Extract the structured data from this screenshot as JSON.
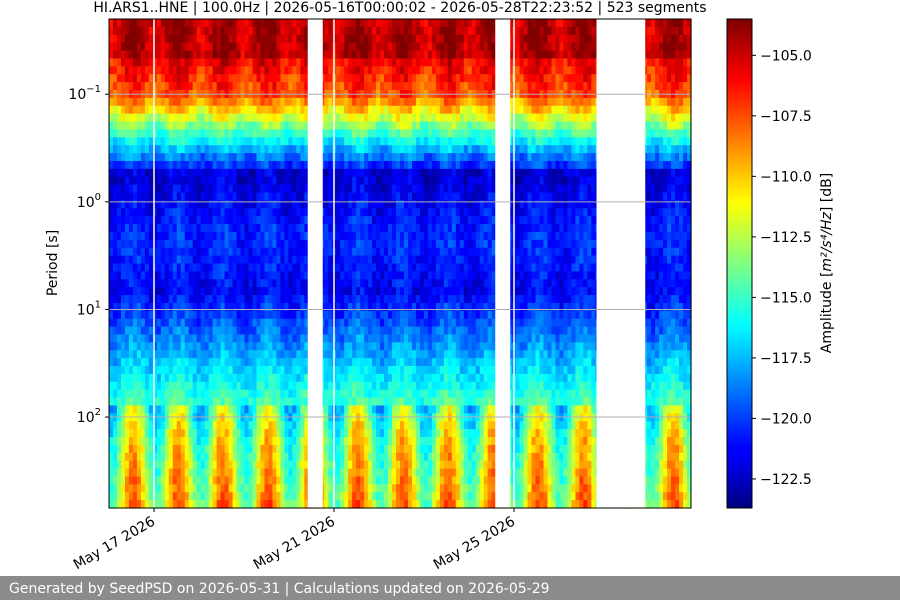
{
  "chart_data": {
    "type": "heatmap",
    "title": "HI.ARS1..HNE | 100.0Hz | 2026-05-16T00:00:02 - 2026-05-28T22:23:52 | 523 segments",
    "ylabel": "Period [s]",
    "y_scale": "log",
    "y_range_s": [
      0.02,
      700
    ],
    "y_ticks": [
      {
        "value": 0.1,
        "base": "10",
        "exp": "−1"
      },
      {
        "value": 1,
        "base": "10",
        "exp": "0"
      },
      {
        "value": 10,
        "base": "10",
        "exp": "1"
      },
      {
        "value": 100,
        "base": "10",
        "exp": "2"
      }
    ],
    "x_range": [
      "2026-05-16T00:00:02",
      "2026-05-28T22:23:52"
    ],
    "x_ticks": [
      "May 17 2026",
      "May 21 2026",
      "May 25 2026"
    ],
    "grid": true,
    "colorbar": {
      "label_prefix": "Amplitude [",
      "label_unit": "m²/s⁴/Hz",
      "label_suffix": "] [dB]",
      "range": [
        -123.7,
        -103.5
      ],
      "ticks": [
        "−105.0",
        "−107.5",
        "−110.0",
        "−112.5",
        "−115.0",
        "−117.5",
        "−120.0",
        "−122.5"
      ],
      "colormap": "jet"
    },
    "data_gaps": [
      [
        "2026-05-20T10:00",
        "2026-05-20T18:00"
      ],
      [
        "2026-05-24T14:00",
        "2026-05-24T22:00"
      ],
      [
        "2026-05-26T20:00",
        "2026-05-27T22:00"
      ]
    ]
  },
  "footer": {
    "text": "Generated by SeedPSD on 2026-05-31 | Calculations updated on 2026-05-29"
  }
}
